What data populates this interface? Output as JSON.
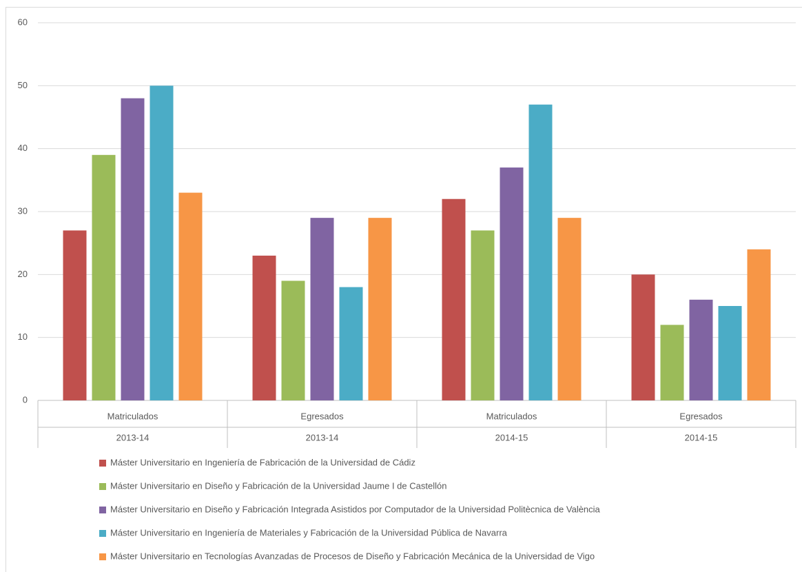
{
  "chart_data": {
    "type": "bar",
    "categories": [
      [
        "Matriculados",
        "2013-14"
      ],
      [
        "Egresados",
        "2013-14"
      ],
      [
        "Matriculados",
        "2014-15"
      ],
      [
        "Egresados",
        "2014-15"
      ]
    ],
    "series": [
      {
        "name": "Máster Universitario en Ingeniería de Fabricación de la Universidad de Cádiz",
        "color": "#c0504d",
        "values": [
          27,
          23,
          32,
          20
        ]
      },
      {
        "name": "Máster Universitario en Diseño y Fabricación de la Universidad Jaume I de Castellón",
        "color": "#9bbb59",
        "values": [
          39,
          19,
          27,
          12
        ]
      },
      {
        "name": "Máster Universitario en Diseño y Fabricación Integrada Asistidos por Computador de la Universidad Politècnica de València",
        "color": "#8064a2",
        "values": [
          48,
          29,
          37,
          16
        ]
      },
      {
        "name": "Máster Universitario en Ingeniería de Materiales y Fabricación de la Universidad Pública de Navarra",
        "color": "#4bacc6",
        "values": [
          50,
          18,
          47,
          15
        ]
      },
      {
        "name": "Máster Universitario en Tecnologías Avanzadas de Procesos de Diseño y Fabricación Mecánica de la Universidad de Vigo",
        "color": "#f79646",
        "values": [
          33,
          29,
          29,
          24
        ]
      }
    ],
    "ylim": [
      0,
      60
    ],
    "yticks": [
      0,
      10,
      20,
      30,
      40,
      50,
      60
    ],
    "grid": true,
    "legend": "bottom"
  }
}
